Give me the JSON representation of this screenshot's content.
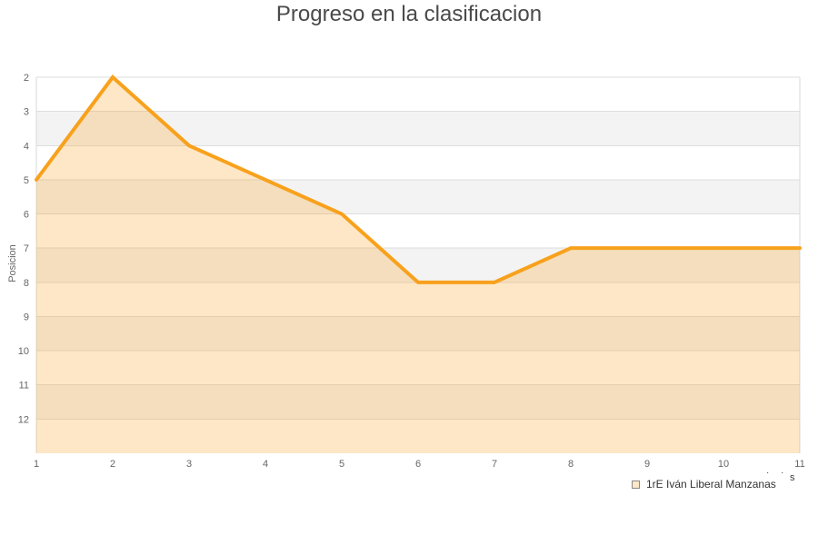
{
  "chart_data": {
    "type": "area",
    "title": "Progreso en la clasificacion",
    "xlabel": "",
    "ylabel": "Posicion",
    "x": [
      1,
      2,
      3,
      4,
      5,
      6,
      7,
      8,
      9,
      10,
      11
    ],
    "x_ticks": [
      "1",
      "2",
      "3",
      "4",
      "5",
      "6",
      "7",
      "8",
      "9",
      "10",
      "11"
    ],
    "y_ticks": [
      "2",
      "3",
      "4",
      "5",
      "6",
      "7",
      "8",
      "9",
      "10",
      "11",
      "12"
    ],
    "y_axis": {
      "min": 2,
      "max": 13,
      "inverted": true
    },
    "grid": true,
    "zebra_bands": true,
    "legend_position": "bottom-right",
    "series": [
      {
        "name": "1rE Iván Liberal Manzanas",
        "values": [
          5,
          2,
          4,
          5,
          6,
          8,
          8,
          7,
          7,
          7,
          7
        ]
      }
    ],
    "colors": {
      "line": "#f8a11c",
      "fill": "#f8a11c",
      "fill_opacity": 0.25,
      "band_light": "#ffffff",
      "band_dark": "#f3f3f3",
      "gridline": "#dedede",
      "plot_border": "#d8d8d8",
      "title_text": "#4a4a4a",
      "axis_text": "#666666",
      "legend_text": "#333333",
      "legend_swatch_fill": "#fbe8c9",
      "legend_swatch_border": "#888888"
    }
  },
  "legend_fragment": {
    "dot1": "·",
    "dot2": "·",
    "letter": "s"
  }
}
